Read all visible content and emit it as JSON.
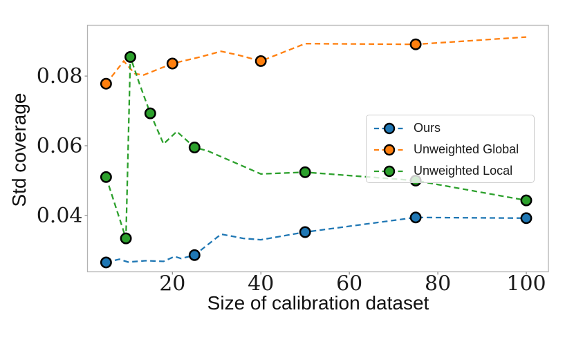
{
  "chart_data": {
    "type": "line",
    "title": "",
    "xlabel": "Size of calibration dataset",
    "ylabel": "Std coverage",
    "xlim": [
      0.8,
      105
    ],
    "ylim": [
      0.0238,
      0.0946
    ],
    "xtick_values": [
      20,
      40,
      60,
      80,
      100
    ],
    "xtick_labels": [
      "20",
      "40",
      "60",
      "80",
      "100"
    ],
    "ytick_values": [
      0.04,
      0.06,
      0.08
    ],
    "ytick_labels": [
      "0.04",
      "0.06",
      "0.08"
    ],
    "grid": false,
    "line_style": "dashed",
    "spine_color": "#b3b3b3",
    "tick_color": "#8c8c8c",
    "marker_edge_color": "#000000",
    "legend": {
      "position": "center-right",
      "border_color": "#cccccc",
      "background": "rgba(255,255,255,0.8)"
    },
    "series": [
      {
        "name": "Ours",
        "color": "#1f77b4",
        "x": [
          5,
          8,
          10,
          14,
          18,
          20.5,
          22,
          25,
          31,
          36,
          40,
          50,
          75,
          100
        ],
        "y": [
          0.0265,
          0.0274,
          0.0266,
          0.027,
          0.0268,
          0.0282,
          0.0276,
          0.0286,
          0.0346,
          0.0334,
          0.033,
          0.0352,
          0.0394,
          0.0392
        ],
        "marker_x": [
          5,
          25,
          50,
          75,
          100
        ]
      },
      {
        "name": "Unweighted Global",
        "color": "#ff7f0e",
        "x": [
          5,
          9,
          11.5,
          13.5,
          20,
          26,
          31,
          35,
          40,
          50,
          75,
          100
        ],
        "y": [
          0.0778,
          0.0843,
          0.0807,
          0.0803,
          0.0836,
          0.0854,
          0.0871,
          0.086,
          0.0843,
          0.0893,
          0.0891,
          0.0912
        ],
        "marker_x": [
          5,
          20,
          40,
          75
        ]
      },
      {
        "name": "Unweighted Local",
        "color": "#2ca02c",
        "x": [
          5,
          9.5,
          10.5,
          12.5,
          15,
          18,
          21,
          25,
          28,
          40,
          50,
          75,
          100
        ],
        "y": [
          0.051,
          0.0334,
          0.0855,
          0.078,
          0.0693,
          0.0605,
          0.0641,
          0.0595,
          0.0585,
          0.0519,
          0.0524,
          0.05,
          0.0443
        ],
        "marker_x": [
          5,
          9.5,
          10.5,
          15,
          25,
          50,
          75,
          100
        ]
      }
    ]
  }
}
